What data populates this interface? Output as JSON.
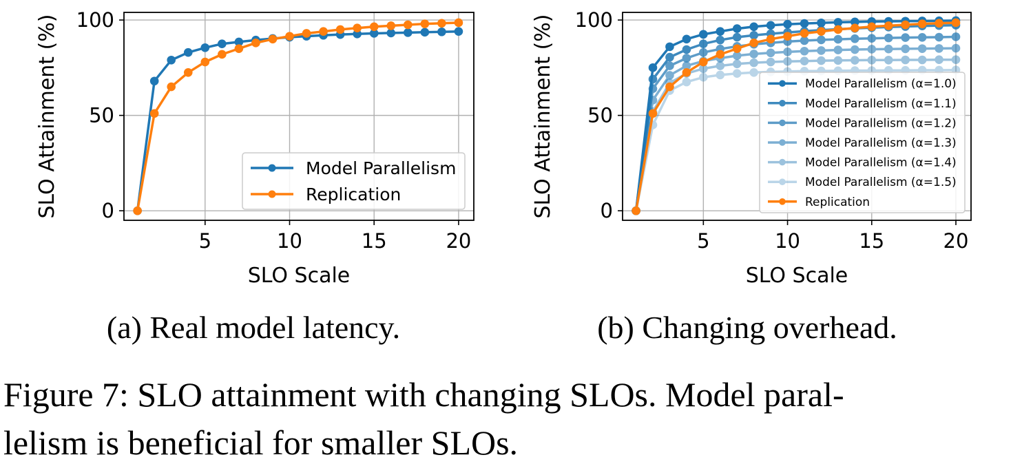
{
  "figure": {
    "caption_line1": "Figure 7: SLO attainment with changing SLOs. Model paral-",
    "caption_line2": "lelism is beneficial for smaller SLOs."
  },
  "colors": {
    "model_parallelism": "#1f77b4",
    "replication": "#ff7f0e",
    "grid": "#b0b0b0"
  },
  "chart_data": [
    {
      "id": "a",
      "type": "line",
      "subcaption": "(a) Real model latency.",
      "xlabel": "SLO Scale",
      "ylabel": "SLO Attainment (%)",
      "xlim": [
        0.2,
        20.9
      ],
      "ylim": [
        -5,
        104
      ],
      "xticks": [
        5,
        10,
        15,
        20
      ],
      "yticks": [
        0,
        50,
        100
      ],
      "grid": true,
      "legend_position": "lower-right",
      "x": [
        1,
        2,
        3,
        4,
        5,
        6,
        7,
        8,
        9,
        10,
        11,
        12,
        13,
        14,
        15,
        16,
        17,
        18,
        19,
        20
      ],
      "series": [
        {
          "name": "Model Parallelism",
          "color": "#1f77b4",
          "opacity": 1,
          "values": [
            0,
            68,
            79,
            83,
            85.5,
            87.5,
            88.5,
            89.5,
            90.3,
            91,
            91.5,
            92,
            92.4,
            92.7,
            93,
            93.2,
            93.4,
            93.6,
            93.8,
            94
          ]
        },
        {
          "name": "Replication",
          "color": "#ff7f0e",
          "opacity": 1,
          "values": [
            0,
            51,
            65,
            72.5,
            78,
            82,
            85,
            88,
            90,
            91.5,
            93,
            94,
            95,
            95.8,
            96.5,
            97,
            97.5,
            98,
            98.3,
            98.6
          ]
        }
      ]
    },
    {
      "id": "b",
      "type": "line",
      "subcaption": "(b) Changing overhead.",
      "xlabel": "SLO Scale",
      "ylabel": "SLO Attainment (%)",
      "xlim": [
        0.2,
        20.9
      ],
      "ylim": [
        -5,
        104
      ],
      "xticks": [
        5,
        10,
        15,
        20
      ],
      "yticks": [
        0,
        50,
        100
      ],
      "grid": true,
      "legend_position": "lower-right",
      "x": [
        1,
        2,
        3,
        4,
        5,
        6,
        7,
        8,
        9,
        10,
        11,
        12,
        13,
        14,
        15,
        16,
        17,
        18,
        19,
        20
      ],
      "series": [
        {
          "name": "Model Parallelism (α=1.0)",
          "color": "#1f77b4",
          "opacity": 1,
          "values": [
            0,
            75,
            86,
            90,
            92.5,
            94,
            95.5,
            96.5,
            97.2,
            97.8,
            98.2,
            98.5,
            98.8,
            99,
            99.2,
            99.3,
            99.4,
            99.5,
            99.6,
            99.7
          ]
        },
        {
          "name": "Model Parallelism (α=1.1)",
          "color": "#1f77b4",
          "opacity": 0.86,
          "values": [
            0,
            69,
            80.5,
            84.5,
            87.5,
            89.5,
            91,
            92,
            92.8,
            93.5,
            94.2,
            94.7,
            95.2,
            95.6,
            96,
            96.3,
            96.6,
            96.9,
            97.1,
            97.3
          ]
        },
        {
          "name": "Model Parallelism (α=1.2)",
          "color": "#1f77b4",
          "opacity": 0.72,
          "values": [
            0,
            64,
            76,
            80,
            83,
            84.8,
            86.2,
            87.3,
            88,
            88.7,
            89.2,
            89.6,
            89.9,
            90.2,
            90.4,
            90.6,
            90.8,
            90.9,
            91,
            91.2
          ]
        },
        {
          "name": "Model Parallelism (α=1.3)",
          "color": "#1f77b4",
          "opacity": 0.58,
          "values": [
            0,
            58,
            71,
            76,
            78.5,
            80,
            81.3,
            82.2,
            82.8,
            83.3,
            83.7,
            84,
            84.3,
            84.5,
            84.7,
            84.8,
            84.9,
            85,
            85.1,
            85.2
          ]
        },
        {
          "name": "Model Parallelism (α=1.4)",
          "color": "#1f77b4",
          "opacity": 0.44,
          "values": [
            0,
            52,
            67,
            72,
            74.5,
            76,
            77,
            77.6,
            78,
            78.3,
            78.5,
            78.7,
            78.8,
            78.9,
            79,
            79,
            79.1,
            79.1,
            79.2,
            79.2
          ]
        },
        {
          "name": "Model Parallelism (α=1.5)",
          "color": "#1f77b4",
          "opacity": 0.3,
          "values": [
            0,
            45,
            63,
            67.5,
            70,
            71.2,
            72,
            72.5,
            72.8,
            73,
            73.2,
            73.3,
            73.4,
            73.5,
            73.5,
            73.6,
            73.6,
            73.7,
            73.7,
            73.8
          ]
        },
        {
          "name": "Replication",
          "color": "#ff7f0e",
          "opacity": 1,
          "values": [
            0,
            51,
            65,
            72.5,
            78,
            82,
            85,
            88,
            90,
            91.5,
            93,
            94,
            95,
            95.8,
            96.5,
            97,
            97.5,
            98,
            98.3,
            98.6
          ]
        }
      ]
    }
  ]
}
